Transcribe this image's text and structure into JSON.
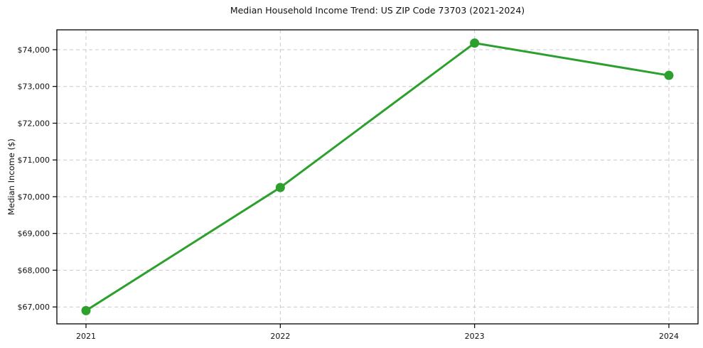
{
  "chart_data": {
    "type": "line",
    "title": "Median Household Income Trend: US ZIP Code 73703 (2021-2024)",
    "xlabel": "",
    "ylabel": "Median Income ($)",
    "categories": [
      "2021",
      "2022",
      "2023",
      "2024"
    ],
    "series": [
      {
        "name": "Median Income ($)",
        "values": [
          66900,
          70250,
          74180,
          73300
        ]
      }
    ],
    "yticks": [
      {
        "value": 67000,
        "label": "$67,000"
      },
      {
        "value": 68000,
        "label": "$68,000"
      },
      {
        "value": 69000,
        "label": "$69,000"
      },
      {
        "value": 70000,
        "label": "$70,000"
      },
      {
        "value": 71000,
        "label": "$71,000"
      },
      {
        "value": 72000,
        "label": "$72,000"
      },
      {
        "value": 73000,
        "label": "$73,000"
      },
      {
        "value": 74000,
        "label": "$74,000"
      }
    ],
    "ylim": [
      66540,
      74540
    ],
    "grid": true,
    "grid_style": "dashed",
    "legend": false,
    "line_color": "#2ca02c",
    "marker": "circle",
    "background_color": "#ffffff"
  }
}
